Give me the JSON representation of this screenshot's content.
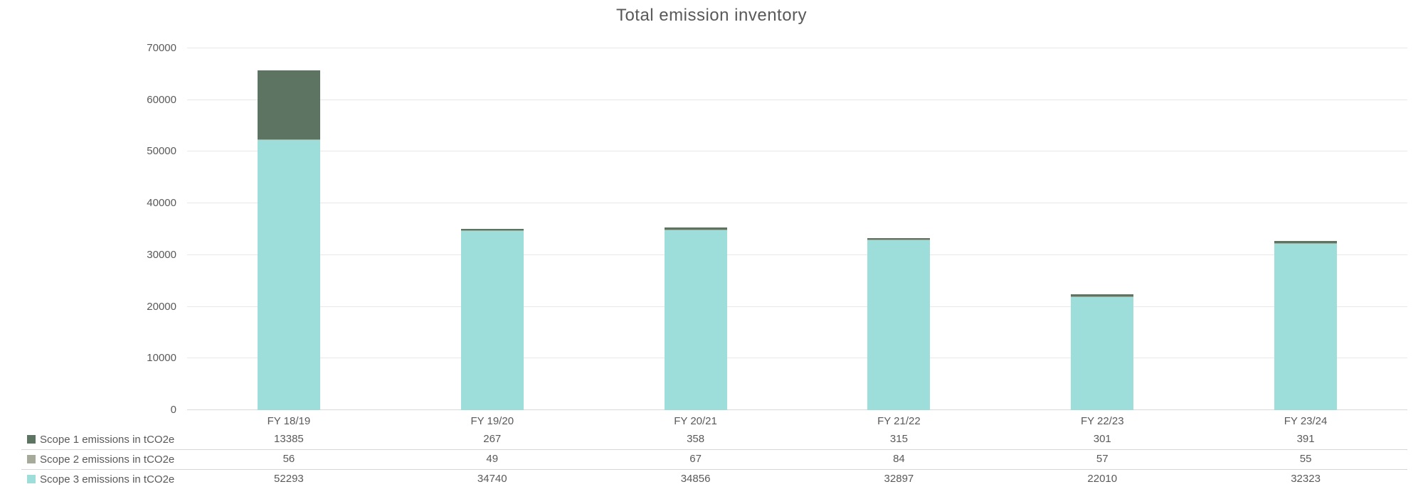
{
  "chart_data": {
    "type": "bar",
    "stacked": true,
    "title": "Total emission inventory",
    "categories": [
      "FY 18/19",
      "FY 19/20",
      "FY 20/21",
      "FY 21/22",
      "FY 22/23",
      "FY 23/24"
    ],
    "series": [
      {
        "name": "Scope 1 emissions in tCO2e",
        "color": "#5d7463",
        "values": [
          13385,
          267,
          358,
          315,
          301,
          391
        ]
      },
      {
        "name": "Scope 2 emissions in tCO2e",
        "color": "#a6aa9b",
        "values": [
          56,
          49,
          67,
          84,
          57,
          55
        ]
      },
      {
        "name": "Scope 3 emissions in tCO2e",
        "color": "#9ddedb",
        "values": [
          52293,
          34740,
          34856,
          32897,
          22010,
          32323
        ]
      }
    ],
    "ylim": [
      0,
      70000
    ],
    "yticks": [
      0,
      10000,
      20000,
      30000,
      40000,
      50000,
      60000,
      70000
    ],
    "grid": true,
    "legend_position": "bottom-table"
  },
  "style_colors": {
    "text": "#595959",
    "gridline": "#e8e8e8",
    "zero_line": "#d9d9d9",
    "row_separator": "#d6d6d6",
    "background": "#ffffff"
  }
}
